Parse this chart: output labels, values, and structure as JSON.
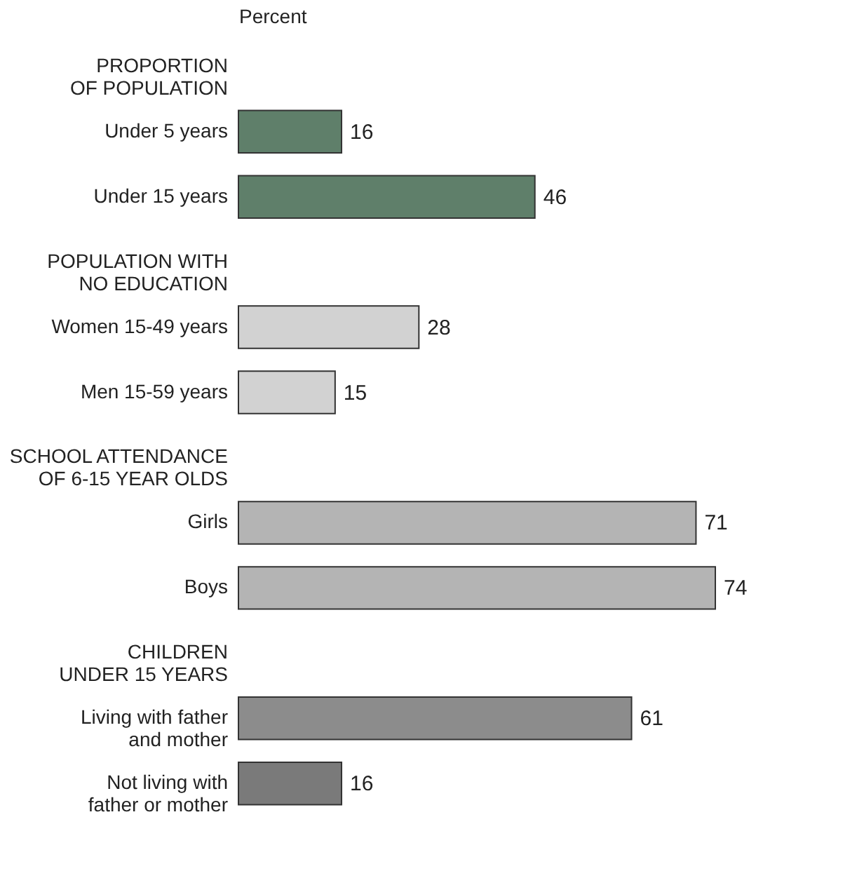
{
  "chart_data": {
    "type": "bar",
    "orientation": "horizontal",
    "xlabel": "Percent",
    "categories": [
      "PROPORTION\nOF POPULATION",
      "Under 5 years",
      "Under 15 years",
      "POPULATION WITH\nNO EDUCATION",
      "Women 15-49 years",
      "Men 15-59 years",
      "SCHOOL ATTENDANCE\nOF 6-15 YEAR OLDS",
      "Girls",
      "Boys",
      "CHILDREN\nUNDER 15 YEARS",
      "Living with father\nand mother",
      "Not living with\nfather or mother"
    ],
    "values": [
      null,
      16,
      46,
      null,
      28,
      15,
      null,
      71,
      74,
      null,
      61,
      16
    ],
    "colors": [
      null,
      "#5f7f6a",
      "#5f7f6a",
      null,
      "#d2d2d2",
      "#d2d2d2",
      null,
      "#b4b4b4",
      "#b4b4b4",
      null,
      "#8c8c8c",
      "#7a7a7a"
    ],
    "data_labels": true,
    "grid": false
  }
}
